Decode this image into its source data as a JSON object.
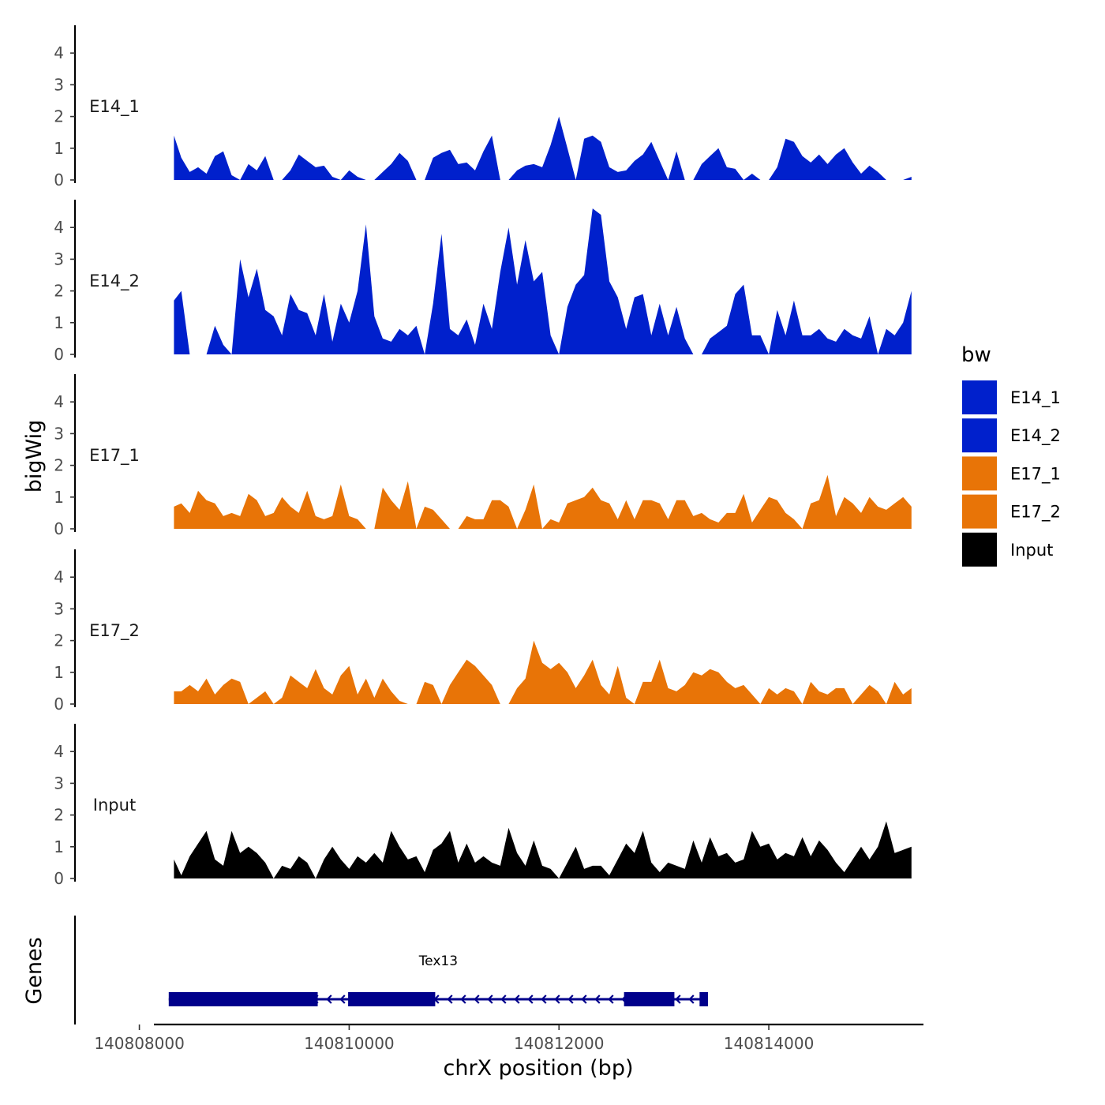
{
  "chart_data": {
    "type": "area",
    "chromosome": "chrX",
    "xlabel": "chrX position (bp)",
    "ylabel": "bigWig",
    "genes_label": "Genes",
    "xlim": [
      140807800,
      140815700
    ],
    "x_ticks": [
      140808000,
      140810000,
      140812000,
      140814000
    ],
    "x_tick_labels": [
      "140808000",
      "140810000",
      "140812000",
      "140814000"
    ],
    "ylim": [
      0,
      4.9
    ],
    "y_ticks": [
      0,
      1,
      2,
      3,
      4
    ],
    "y_tick_labels": [
      "0",
      "1",
      "2",
      "3",
      "4"
    ],
    "legend": {
      "title": "bw",
      "position": "right",
      "entries": [
        {
          "label": "E14_1",
          "color": "#0020CC"
        },
        {
          "label": "E14_2",
          "color": "#0020CC"
        },
        {
          "label": "E17_1",
          "color": "#E87407"
        },
        {
          "label": "E17_2",
          "color": "#E87407"
        },
        {
          "label": "Input",
          "color": "#000000"
        }
      ]
    },
    "series": [
      {
        "name": "E14_1",
        "label": "E14_1",
        "color": "#0020CC",
        "x": [
          140808330,
          140808400,
          140808480,
          140808560,
          140808640,
          140808720,
          140808800,
          140808880,
          140808960,
          140809040,
          140809120,
          140809200,
          140809280,
          140809360,
          140809440,
          140809520,
          140809600,
          140809680,
          140809760,
          140809840,
          140809920,
          140810000,
          140810080,
          140810160,
          140810240,
          140810320,
          140810400,
          140810480,
          140810560,
          140810640,
          140810720,
          140810800,
          140810880,
          140810960,
          140811040,
          140811120,
          140811200,
          140811280,
          140811360,
          140811440,
          140811520,
          140811600,
          140811680,
          140811760,
          140811840,
          140811920,
          140812000,
          140812080,
          140812160,
          140812240,
          140812320,
          140812400,
          140812480,
          140812560,
          140812640,
          140812720,
          140812800,
          140812880,
          140812960,
          140813040,
          140813120,
          140813200,
          140813280,
          140813360,
          140813440,
          140813520,
          140813600,
          140813680,
          140813760,
          140813840,
          140813920,
          140814000,
          140814080,
          140814160,
          140814240,
          140814320,
          140814400,
          140814480,
          140814560,
          140814640,
          140814720,
          140814800,
          140814880,
          140814960,
          140815040,
          140815120,
          140815200,
          140815280,
          140815360
        ],
        "values": [
          1.4,
          0.7,
          0.25,
          0.4,
          0.2,
          0.75,
          0.9,
          0.15,
          0.0,
          0.5,
          0.3,
          0.75,
          0.0,
          0.0,
          0.3,
          0.8,
          0.6,
          0.4,
          0.45,
          0.1,
          0.0,
          0.3,
          0.1,
          0.0,
          0.0,
          0.25,
          0.5,
          0.85,
          0.6,
          0.0,
          0.0,
          0.7,
          0.85,
          0.95,
          0.5,
          0.55,
          0.3,
          0.9,
          1.4,
          0.0,
          0.0,
          0.3,
          0.45,
          0.5,
          0.4,
          1.1,
          2.0,
          1.0,
          0.0,
          1.3,
          1.4,
          1.2,
          0.4,
          0.25,
          0.3,
          0.6,
          0.8,
          1.2,
          0.6,
          0.0,
          0.9,
          0.0,
          0.0,
          0.5,
          0.75,
          1.0,
          0.4,
          0.35,
          0.0,
          0.2,
          0.0,
          0.0,
          0.4,
          1.3,
          1.2,
          0.75,
          0.55,
          0.8,
          0.5,
          0.8,
          1.0,
          0.55,
          0.2,
          0.45,
          0.25,
          0.0,
          0.0,
          0.0,
          0.1
        ]
      },
      {
        "name": "E14_2",
        "label": "E14_2",
        "color": "#0020CC",
        "x": [
          140808330,
          140808400,
          140808480,
          140808560,
          140808640,
          140808720,
          140808800,
          140808880,
          140808960,
          140809040,
          140809120,
          140809200,
          140809280,
          140809360,
          140809440,
          140809520,
          140809600,
          140809680,
          140809760,
          140809840,
          140809920,
          140810000,
          140810080,
          140810160,
          140810240,
          140810320,
          140810400,
          140810480,
          140810560,
          140810640,
          140810720,
          140810800,
          140810880,
          140810960,
          140811040,
          140811120,
          140811200,
          140811280,
          140811360,
          140811440,
          140811520,
          140811600,
          140811680,
          140811760,
          140811840,
          140811920,
          140812000,
          140812080,
          140812160,
          140812240,
          140812320,
          140812400,
          140812480,
          140812560,
          140812640,
          140812720,
          140812800,
          140812880,
          140812960,
          140813040,
          140813120,
          140813200,
          140813280,
          140813360,
          140813440,
          140813520,
          140813600,
          140813680,
          140813760,
          140813840,
          140813920,
          140814000,
          140814080,
          140814160,
          140814240,
          140814320,
          140814400,
          140814480,
          140814560,
          140814640,
          140814720,
          140814800,
          140814880,
          140814960,
          140815040,
          140815120,
          140815200,
          140815280,
          140815360
        ],
        "values": [
          1.7,
          2.0,
          0.0,
          0.0,
          0.0,
          0.9,
          0.3,
          0.0,
          3.0,
          1.8,
          2.7,
          1.4,
          1.2,
          0.6,
          1.9,
          1.4,
          1.3,
          0.6,
          1.9,
          0.4,
          1.6,
          1.0,
          2.0,
          4.1,
          1.2,
          0.5,
          0.4,
          0.8,
          0.6,
          0.9,
          0.0,
          1.6,
          3.8,
          0.8,
          0.6,
          1.1,
          0.3,
          1.6,
          0.8,
          2.6,
          4.0,
          2.2,
          3.6,
          2.3,
          2.6,
          0.6,
          0.0,
          1.5,
          2.2,
          2.5,
          4.6,
          4.4,
          2.3,
          1.8,
          0.8,
          1.8,
          1.9,
          0.6,
          1.6,
          0.6,
          1.5,
          0.5,
          0.0,
          0.0,
          0.5,
          0.7,
          0.9,
          1.9,
          2.2,
          0.6,
          0.6,
          0.0,
          1.4,
          0.6,
          1.7,
          0.6,
          0.6,
          0.8,
          0.5,
          0.4,
          0.8,
          0.6,
          0.5,
          1.2,
          0.0,
          0.8,
          0.6,
          1.0,
          2.0
        ]
      },
      {
        "name": "E17_1",
        "label": "E17_1",
        "color": "#E87407",
        "x": [
          140808330,
          140808400,
          140808480,
          140808560,
          140808640,
          140808720,
          140808800,
          140808880,
          140808960,
          140809040,
          140809120,
          140809200,
          140809280,
          140809360,
          140809440,
          140809520,
          140809600,
          140809680,
          140809760,
          140809840,
          140809920,
          140810000,
          140810080,
          140810160,
          140810240,
          140810320,
          140810400,
          140810480,
          140810560,
          140810640,
          140810720,
          140810800,
          140810880,
          140810960,
          140811040,
          140811120,
          140811200,
          140811280,
          140811360,
          140811440,
          140811520,
          140811600,
          140811680,
          140811760,
          140811840,
          140811920,
          140812000,
          140812080,
          140812160,
          140812240,
          140812320,
          140812400,
          140812480,
          140812560,
          140812640,
          140812720,
          140812800,
          140812880,
          140812960,
          140813040,
          140813120,
          140813200,
          140813280,
          140813360,
          140813440,
          140813520,
          140813600,
          140813680,
          140813760,
          140813840,
          140813920,
          140814000,
          140814080,
          140814160,
          140814240,
          140814320,
          140814400,
          140814480,
          140814560,
          140814640,
          140814720,
          140814800,
          140814880,
          140814960,
          140815040,
          140815120,
          140815200,
          140815280,
          140815360
        ],
        "values": [
          0.7,
          0.8,
          0.5,
          1.2,
          0.9,
          0.8,
          0.4,
          0.5,
          0.4,
          1.1,
          0.9,
          0.4,
          0.5,
          1.0,
          0.7,
          0.5,
          1.2,
          0.4,
          0.3,
          0.4,
          1.4,
          0.4,
          0.3,
          0.0,
          0.0,
          1.3,
          0.9,
          0.6,
          1.5,
          0.0,
          0.7,
          0.6,
          0.3,
          0.0,
          0.0,
          0.4,
          0.3,
          0.3,
          0.9,
          0.9,
          0.7,
          0.0,
          0.6,
          1.4,
          0.0,
          0.3,
          0.2,
          0.8,
          0.9,
          1.0,
          1.3,
          0.9,
          0.8,
          0.3,
          0.9,
          0.3,
          0.9,
          0.9,
          0.8,
          0.3,
          0.9,
          0.9,
          0.4,
          0.5,
          0.3,
          0.2,
          0.5,
          0.5,
          1.1,
          0.2,
          0.6,
          1.0,
          0.9,
          0.5,
          0.3,
          0.0,
          0.8,
          0.9,
          1.7,
          0.4,
          1.0,
          0.8,
          0.5,
          1.0,
          0.7,
          0.6,
          0.8,
          1.0,
          0.7
        ]
      },
      {
        "name": "E17_2",
        "label": "E17_2",
        "color": "#E87407",
        "x": [
          140808330,
          140808400,
          140808480,
          140808560,
          140808640,
          140808720,
          140808800,
          140808880,
          140808960,
          140809040,
          140809120,
          140809200,
          140809280,
          140809360,
          140809440,
          140809520,
          140809600,
          140809680,
          140809760,
          140809840,
          140809920,
          140810000,
          140810080,
          140810160,
          140810240,
          140810320,
          140810400,
          140810480,
          140810560,
          140810640,
          140810720,
          140810800,
          140810880,
          140810960,
          140811040,
          140811120,
          140811200,
          140811280,
          140811360,
          140811440,
          140811520,
          140811600,
          140811680,
          140811760,
          140811840,
          140811920,
          140812000,
          140812080,
          140812160,
          140812240,
          140812320,
          140812400,
          140812480,
          140812560,
          140812640,
          140812720,
          140812800,
          140812880,
          140812960,
          140813040,
          140813120,
          140813200,
          140813280,
          140813360,
          140813440,
          140813520,
          140813600,
          140813680,
          140813760,
          140813840,
          140813920,
          140814000,
          140814080,
          140814160,
          140814240,
          140814320,
          140814400,
          140814480,
          140814560,
          140814640,
          140814720,
          140814800,
          140814880,
          140814960,
          140815040,
          140815120,
          140815200,
          140815280,
          140815360
        ],
        "values": [
          0.4,
          0.4,
          0.6,
          0.4,
          0.8,
          0.3,
          0.6,
          0.8,
          0.7,
          0.0,
          0.2,
          0.4,
          0.0,
          0.2,
          0.9,
          0.7,
          0.5,
          1.1,
          0.5,
          0.3,
          0.9,
          1.2,
          0.3,
          0.8,
          0.2,
          0.8,
          0.4,
          0.1,
          0.0,
          0.0,
          0.7,
          0.6,
          0.0,
          0.6,
          1.0,
          1.4,
          1.2,
          0.9,
          0.6,
          0.0,
          0.0,
          0.5,
          0.8,
          2.0,
          1.3,
          1.1,
          1.3,
          1.0,
          0.5,
          0.9,
          1.4,
          0.6,
          0.3,
          1.2,
          0.2,
          0.0,
          0.7,
          0.7,
          1.4,
          0.5,
          0.4,
          0.6,
          1.0,
          0.9,
          1.1,
          1.0,
          0.7,
          0.5,
          0.6,
          0.3,
          0.0,
          0.5,
          0.3,
          0.5,
          0.4,
          0.0,
          0.7,
          0.4,
          0.3,
          0.5,
          0.5,
          0.0,
          0.3,
          0.6,
          0.4,
          0.0,
          0.7,
          0.3,
          0.5
        ]
      },
      {
        "name": "Input",
        "label": "Input",
        "color": "#000000",
        "x": [
          140808330,
          140808400,
          140808480,
          140808560,
          140808640,
          140808720,
          140808800,
          140808880,
          140808960,
          140809040,
          140809120,
          140809200,
          140809280,
          140809360,
          140809440,
          140809520,
          140809600,
          140809680,
          140809760,
          140809840,
          140809920,
          140810000,
          140810080,
          140810160,
          140810240,
          140810320,
          140810400,
          140810480,
          140810560,
          140810640,
          140810720,
          140810800,
          140810880,
          140810960,
          140811040,
          140811120,
          140811200,
          140811280,
          140811360,
          140811440,
          140811520,
          140811600,
          140811680,
          140811760,
          140811840,
          140811920,
          140812000,
          140812080,
          140812160,
          140812240,
          140812320,
          140812400,
          140812480,
          140812560,
          140812640,
          140812720,
          140812800,
          140812880,
          140812960,
          140813040,
          140813120,
          140813200,
          140813280,
          140813360,
          140813440,
          140813520,
          140813600,
          140813680,
          140813760,
          140813840,
          140813920,
          140814000,
          140814080,
          140814160,
          140814240,
          140814320,
          140814400,
          140814480,
          140814560,
          140814640,
          140814720,
          140814800,
          140814880,
          140814960,
          140815040,
          140815120,
          140815200,
          140815280,
          140815360
        ],
        "values": [
          0.6,
          0.1,
          0.7,
          1.1,
          1.5,
          0.6,
          0.4,
          1.5,
          0.8,
          1.0,
          0.8,
          0.5,
          0.0,
          0.4,
          0.3,
          0.7,
          0.5,
          0.0,
          0.6,
          1.0,
          0.6,
          0.3,
          0.7,
          0.5,
          0.8,
          0.5,
          1.5,
          1.0,
          0.6,
          0.7,
          0.2,
          0.9,
          1.1,
          1.5,
          0.5,
          1.1,
          0.5,
          0.7,
          0.5,
          0.4,
          1.6,
          0.8,
          0.4,
          1.2,
          0.4,
          0.3,
          0.0,
          0.5,
          1.0,
          0.3,
          0.4,
          0.4,
          0.1,
          0.6,
          1.1,
          0.8,
          1.5,
          0.5,
          0.2,
          0.5,
          0.4,
          0.3,
          1.2,
          0.5,
          1.3,
          0.7,
          0.8,
          0.5,
          0.6,
          1.5,
          1.0,
          1.1,
          0.6,
          0.8,
          0.7,
          1.3,
          0.7,
          1.2,
          0.9,
          0.5,
          0.2,
          0.6,
          1.0,
          0.6,
          1.0,
          1.8,
          0.8,
          0.9,
          1.0
        ]
      }
    ],
    "genes": [
      {
        "name": "Tex13",
        "label": "Tex13",
        "strand": "-",
        "start": 140808280,
        "end": 140813420,
        "exons": [
          [
            140808280,
            140809700
          ],
          [
            140809990,
            140810820
          ],
          [
            140812620,
            140813100
          ],
          [
            140813340,
            140813420
          ]
        ]
      }
    ]
  }
}
